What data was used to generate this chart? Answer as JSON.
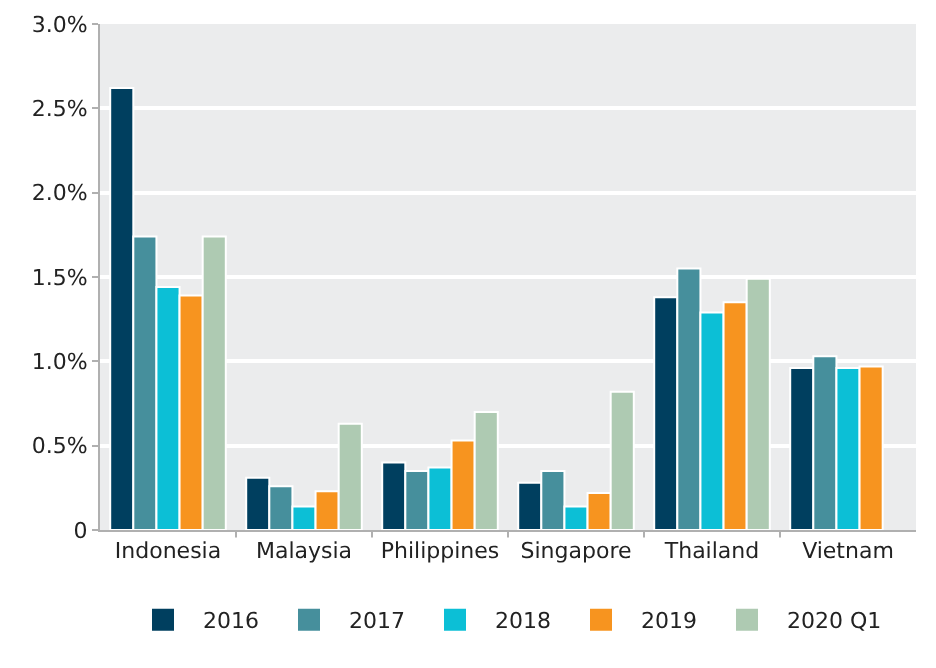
{
  "chart_data": {
    "type": "bar",
    "categories": [
      "Indonesia",
      "Malaysia",
      "Philippines",
      "Singapore",
      "Thailand",
      "Vietnam"
    ],
    "series": [
      {
        "name": "2016",
        "color": "#003f5f",
        "values": [
          2.62,
          0.31,
          0.4,
          0.28,
          1.38,
          0.96
        ]
      },
      {
        "name": "2017",
        "color": "#468f9c",
        "values": [
          1.74,
          0.26,
          0.35,
          0.35,
          1.55,
          1.03
        ]
      },
      {
        "name": "2018",
        "color": "#0cbfd6",
        "values": [
          1.44,
          0.14,
          0.37,
          0.14,
          1.29,
          0.96
        ]
      },
      {
        "name": "2019",
        "color": "#f7941f",
        "values": [
          1.39,
          0.23,
          0.53,
          0.22,
          1.35,
          0.97
        ]
      },
      {
        "name": "2020 Q1",
        "color": "#aecab2",
        "values": [
          1.74,
          0.63,
          0.7,
          0.82,
          1.49,
          null
        ]
      }
    ],
    "ylim": [
      0,
      3
    ],
    "yticks": [
      {
        "value": 0,
        "label": "0"
      },
      {
        "value": 0.5,
        "label": "0.5%"
      },
      {
        "value": 1,
        "label": "1.0%"
      },
      {
        "value": 1.5,
        "label": "1.5%"
      },
      {
        "value": 2,
        "label": "2.0%"
      },
      {
        "value": 2.5,
        "label": "2.5%"
      },
      {
        "value": 3,
        "label": "3.0%"
      }
    ],
    "grid": "y",
    "legend": "bottom"
  }
}
